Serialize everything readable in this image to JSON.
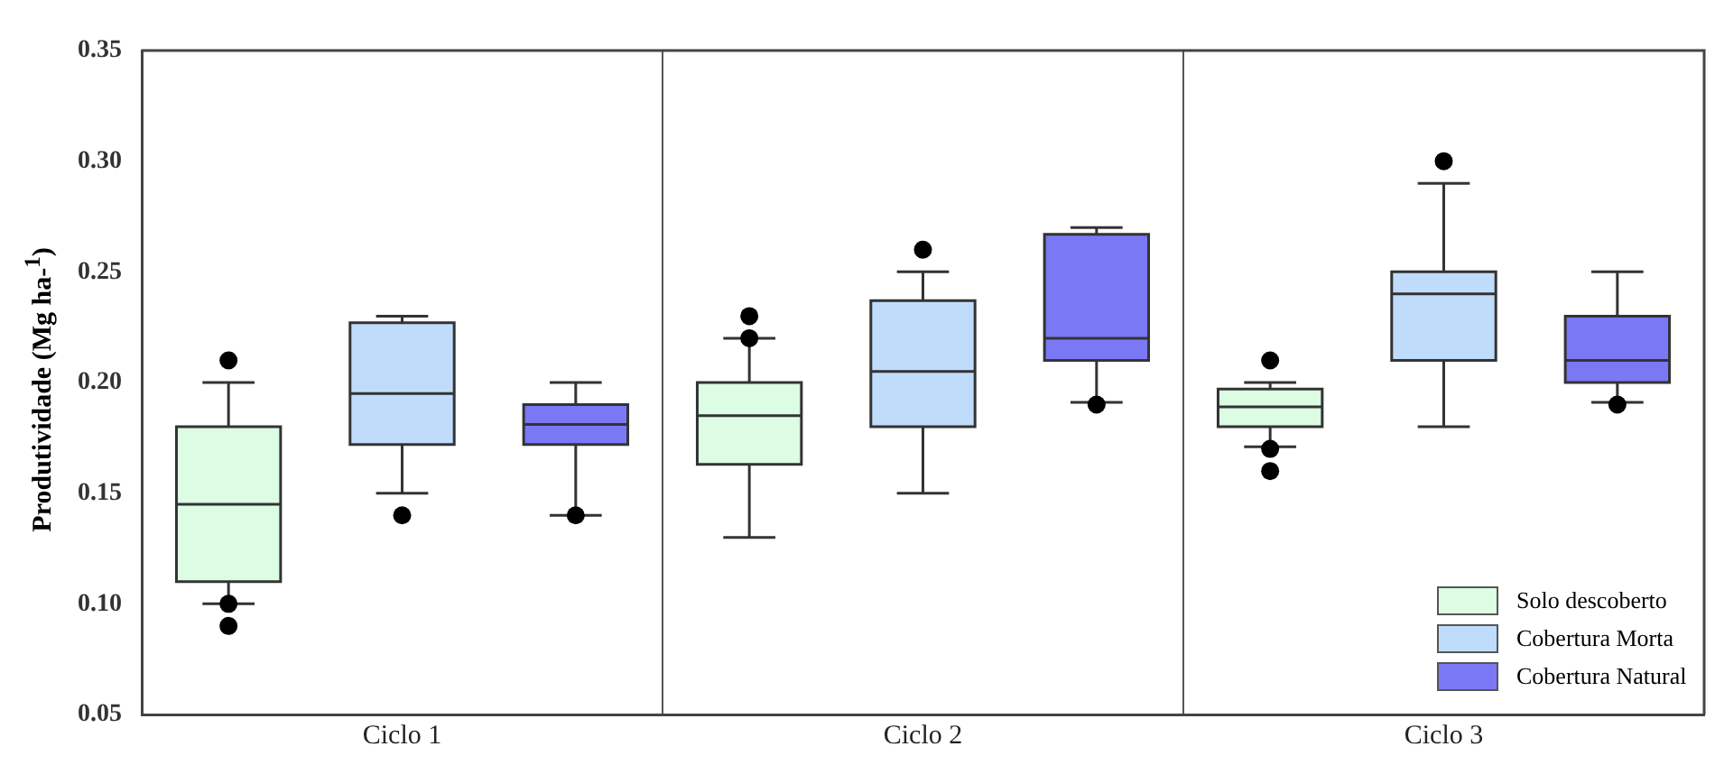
{
  "chart_data": {
    "type": "box",
    "ylabel": "Produtividade (Mg ha-$^{1}$)",
    "categories": [
      "Ciclo 1",
      "Ciclo 2",
      "Ciclo 3"
    ],
    "ylim": [
      0.05,
      0.35
    ],
    "yticks": [
      {
        "value": 0.05,
        "label": "0.05"
      },
      {
        "value": 0.1,
        "label": "0.10"
      },
      {
        "value": 0.15,
        "label": "0.15"
      },
      {
        "value": 0.2,
        "label": "0.20"
      },
      {
        "value": 0.25,
        "label": "0.25"
      },
      {
        "value": 0.3,
        "label": "0.30"
      },
      {
        "value": 0.35,
        "label": "0.35"
      }
    ],
    "grid": "x",
    "legend": "bottom right",
    "marker": "circle",
    "series": [
      {
        "name": "Solo descoberto",
        "color": "#dcfce4",
        "boxes": [
          {
            "low": 0.1,
            "q1": 0.11,
            "median": 0.145,
            "q3": 0.18,
            "high": 0.2,
            "outliers": [
              0.21,
              0.1,
              0.09
            ]
          },
          {
            "low": 0.13,
            "q1": 0.163,
            "median": 0.185,
            "q3": 0.2,
            "high": 0.22,
            "outliers": [
              0.23,
              0.22
            ]
          },
          {
            "low": 0.171,
            "q1": 0.18,
            "median": 0.189,
            "q3": 0.197,
            "high": 0.2,
            "outliers": [
              0.21,
              0.17,
              0.16
            ]
          }
        ]
      },
      {
        "name": "Cobertura Morta",
        "color": "#bfdcfb",
        "boxes": [
          {
            "low": 0.15,
            "q1": 0.172,
            "median": 0.195,
            "q3": 0.227,
            "high": 0.23,
            "outliers": [
              0.14
            ]
          },
          {
            "low": 0.15,
            "q1": 0.18,
            "median": 0.205,
            "q3": 0.237,
            "high": 0.25,
            "outliers": [
              0.26
            ]
          },
          {
            "low": 0.18,
            "q1": 0.21,
            "median": 0.24,
            "q3": 0.25,
            "high": 0.29,
            "outliers": [
              0.3
            ]
          }
        ]
      },
      {
        "name": "Cobertura Natural",
        "color": "#7b78f5",
        "boxes": [
          {
            "low": 0.14,
            "q1": 0.172,
            "median": 0.181,
            "q3": 0.19,
            "high": 0.2,
            "outliers": [
              0.14
            ]
          },
          {
            "low": 0.191,
            "q1": 0.21,
            "median": 0.22,
            "q3": 0.267,
            "high": 0.27,
            "outliers": [
              0.19
            ]
          },
          {
            "low": 0.191,
            "q1": 0.2,
            "median": 0.21,
            "q3": 0.23,
            "high": 0.25,
            "outliers": [
              0.19
            ]
          }
        ]
      }
    ]
  }
}
